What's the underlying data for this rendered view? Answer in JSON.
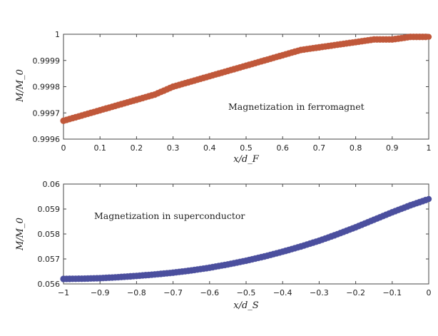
{
  "chart_data": [
    {
      "type": "scatter",
      "title": "",
      "annotation": "Magnetization in ferromagnet",
      "xlabel": "x/d_F",
      "ylabel": "M/M_0",
      "xlim": [
        0,
        1
      ],
      "ylim": [
        0.9996,
        1.0
      ],
      "xticks": [
        "0",
        "0.1",
        "0.2",
        "0.3",
        "0.4",
        "0.5",
        "0.6",
        "0.7",
        "0.8",
        "0.9",
        "1"
      ],
      "yticks": [
        "0.9996",
        "0.9997",
        "0.9998",
        "0.9999",
        "1"
      ],
      "color": "#c0583a",
      "series": [
        {
          "name": "ferromagnet",
          "x": [
            0,
            0.05,
            0.1,
            0.15,
            0.2,
            0.25,
            0.3,
            0.35,
            0.4,
            0.45,
            0.5,
            0.55,
            0.6,
            0.65,
            0.7,
            0.75,
            0.8,
            0.85,
            0.9,
            0.95,
            1.0
          ],
          "y": [
            0.99967,
            0.99969,
            0.99971,
            0.99973,
            0.99975,
            0.99977,
            0.9998,
            0.99982,
            0.99984,
            0.99986,
            0.99988,
            0.9999,
            0.99992,
            0.99994,
            0.99995,
            0.99996,
            0.99997,
            0.99998,
            0.99998,
            0.99999,
            0.99999
          ]
        }
      ]
    },
    {
      "type": "scatter",
      "title": "",
      "annotation": "Magnetization in superconductor",
      "xlabel": "x/d_S",
      "ylabel": "M/M_0",
      "xlim": [
        -1,
        0
      ],
      "ylim": [
        0.056,
        0.06
      ],
      "xticks": [
        "−1",
        "−0.9",
        "−0.8",
        "−0.7",
        "−0.6",
        "−0.5",
        "−0.4",
        "−0.3",
        "−0.2",
        "−0.1",
        "0"
      ],
      "yticks": [
        "0.056",
        "0.057",
        "0.058",
        "0.059",
        "0.06"
      ],
      "color": "#4b4f9e",
      "series": [
        {
          "name": "superconductor",
          "x": [
            -1.0,
            -0.95,
            -0.9,
            -0.85,
            -0.8,
            -0.75,
            -0.7,
            -0.65,
            -0.6,
            -0.55,
            -0.5,
            -0.45,
            -0.4,
            -0.35,
            -0.3,
            -0.25,
            -0.2,
            -0.15,
            -0.1,
            -0.05,
            0.0
          ],
          "y": [
            0.0562,
            0.05621,
            0.05623,
            0.05627,
            0.05632,
            0.05638,
            0.05645,
            0.05654,
            0.05665,
            0.05678,
            0.05693,
            0.0571,
            0.05729,
            0.0575,
            0.05773,
            0.05799,
            0.05827,
            0.05857,
            0.05887,
            0.05915,
            0.0594
          ]
        }
      ]
    }
  ]
}
